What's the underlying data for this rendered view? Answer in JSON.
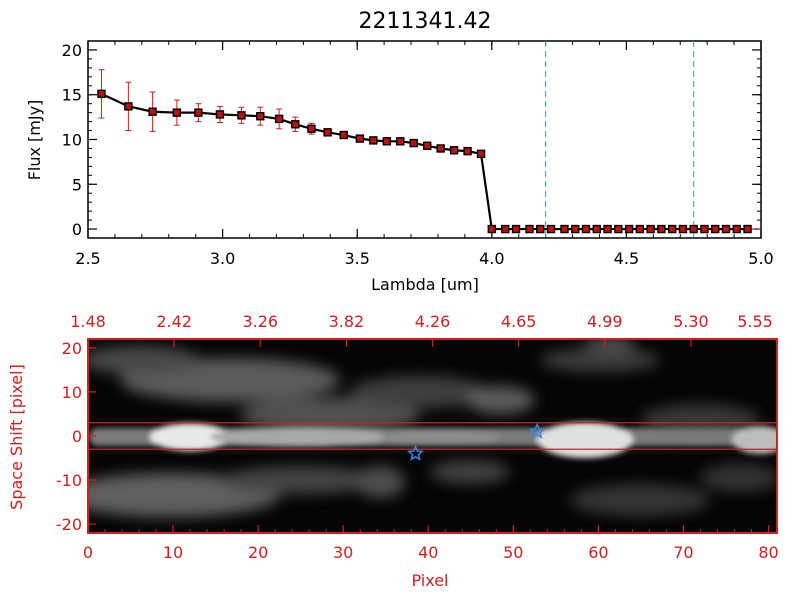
{
  "chart_data": [
    {
      "type": "line",
      "title": "2211341.42",
      "xlabel": "Lambda [um]",
      "ylabel": "Flux [mJy]",
      "xlim": [
        2.5,
        5.0
      ],
      "ylim": [
        -1,
        21
      ],
      "x_ticks": [
        "2.5",
        "3.0",
        "3.5",
        "4.0",
        "4.5",
        "5.0"
      ],
      "y_ticks": [
        "0",
        "5",
        "10",
        "15",
        "20"
      ],
      "series": [
        {
          "name": "flux",
          "x": [
            2.55,
            2.65,
            2.74,
            2.83,
            2.91,
            2.99,
            3.07,
            3.14,
            3.21,
            3.27,
            3.33,
            3.39,
            3.45,
            3.51,
            3.56,
            3.61,
            3.66,
            3.71,
            3.76,
            3.81,
            3.86,
            3.91,
            3.96,
            4.0,
            4.05,
            4.09,
            4.14,
            4.18,
            4.22,
            4.27,
            4.31,
            4.35,
            4.39,
            4.43,
            4.47,
            4.51,
            4.55,
            4.59,
            4.63,
            4.67,
            4.71,
            4.75,
            4.79,
            4.83,
            4.87,
            4.91,
            4.95
          ],
          "y": [
            15.1,
            13.7,
            13.1,
            13.0,
            13.0,
            12.8,
            12.7,
            12.6,
            12.3,
            11.7,
            11.2,
            10.8,
            10.5,
            10.1,
            9.9,
            9.8,
            9.8,
            9.6,
            9.3,
            9.0,
            8.8,
            8.7,
            8.4,
            0,
            0,
            0,
            0,
            0,
            0,
            0,
            0,
            0,
            0,
            0,
            0,
            0,
            0,
            0,
            0,
            0,
            0,
            0,
            0,
            0,
            0,
            0,
            0
          ],
          "error": [
            2.7,
            2.7,
            2.2,
            1.4,
            1.0,
            0.9,
            0.9,
            1.0,
            1.1,
            0.8,
            0.6,
            0.4,
            0.3,
            0.3,
            0.3,
            0.3,
            0.3,
            0.3,
            0.3,
            0.3,
            0.3,
            0.3,
            0.3,
            0,
            0,
            0,
            0,
            0,
            0,
            0,
            0,
            0,
            0,
            0,
            0,
            0,
            0,
            0,
            0,
            0,
            0,
            0,
            0,
            0,
            0,
            0,
            0
          ]
        }
      ],
      "vlines": [
        4.2,
        4.75
      ],
      "zero_line": 0,
      "colors": {
        "line": "#000000",
        "marker": "#bb1111",
        "error": "#cc2222",
        "vline": "#3399cc",
        "zero": "#cc2222"
      }
    },
    {
      "type": "heatmap",
      "xlabel": "Pixel",
      "ylabel": "Space Shift [pixel]",
      "xlim": [
        0,
        81
      ],
      "ylim": [
        -22,
        22
      ],
      "x_ticks": [
        "0",
        "10",
        "20",
        "30",
        "40",
        "50",
        "60",
        "70",
        "80"
      ],
      "y_ticks": [
        "-20",
        "-10",
        "0",
        "10",
        "20"
      ],
      "top_ticks": [
        "1.48",
        "2.42",
        "3.26",
        "3.82",
        "4.26",
        "4.65",
        "4.99",
        "5.30",
        "5.55"
      ],
      "trace_band": [
        -3,
        3
      ],
      "stars": [
        {
          "x": 38.5,
          "y": -4
        },
        {
          "x": 52.8,
          "y": 1
        }
      ],
      "colors": {
        "frame": "#cc2222",
        "band": "#cc2222",
        "star": "#3388ee"
      }
    }
  ]
}
